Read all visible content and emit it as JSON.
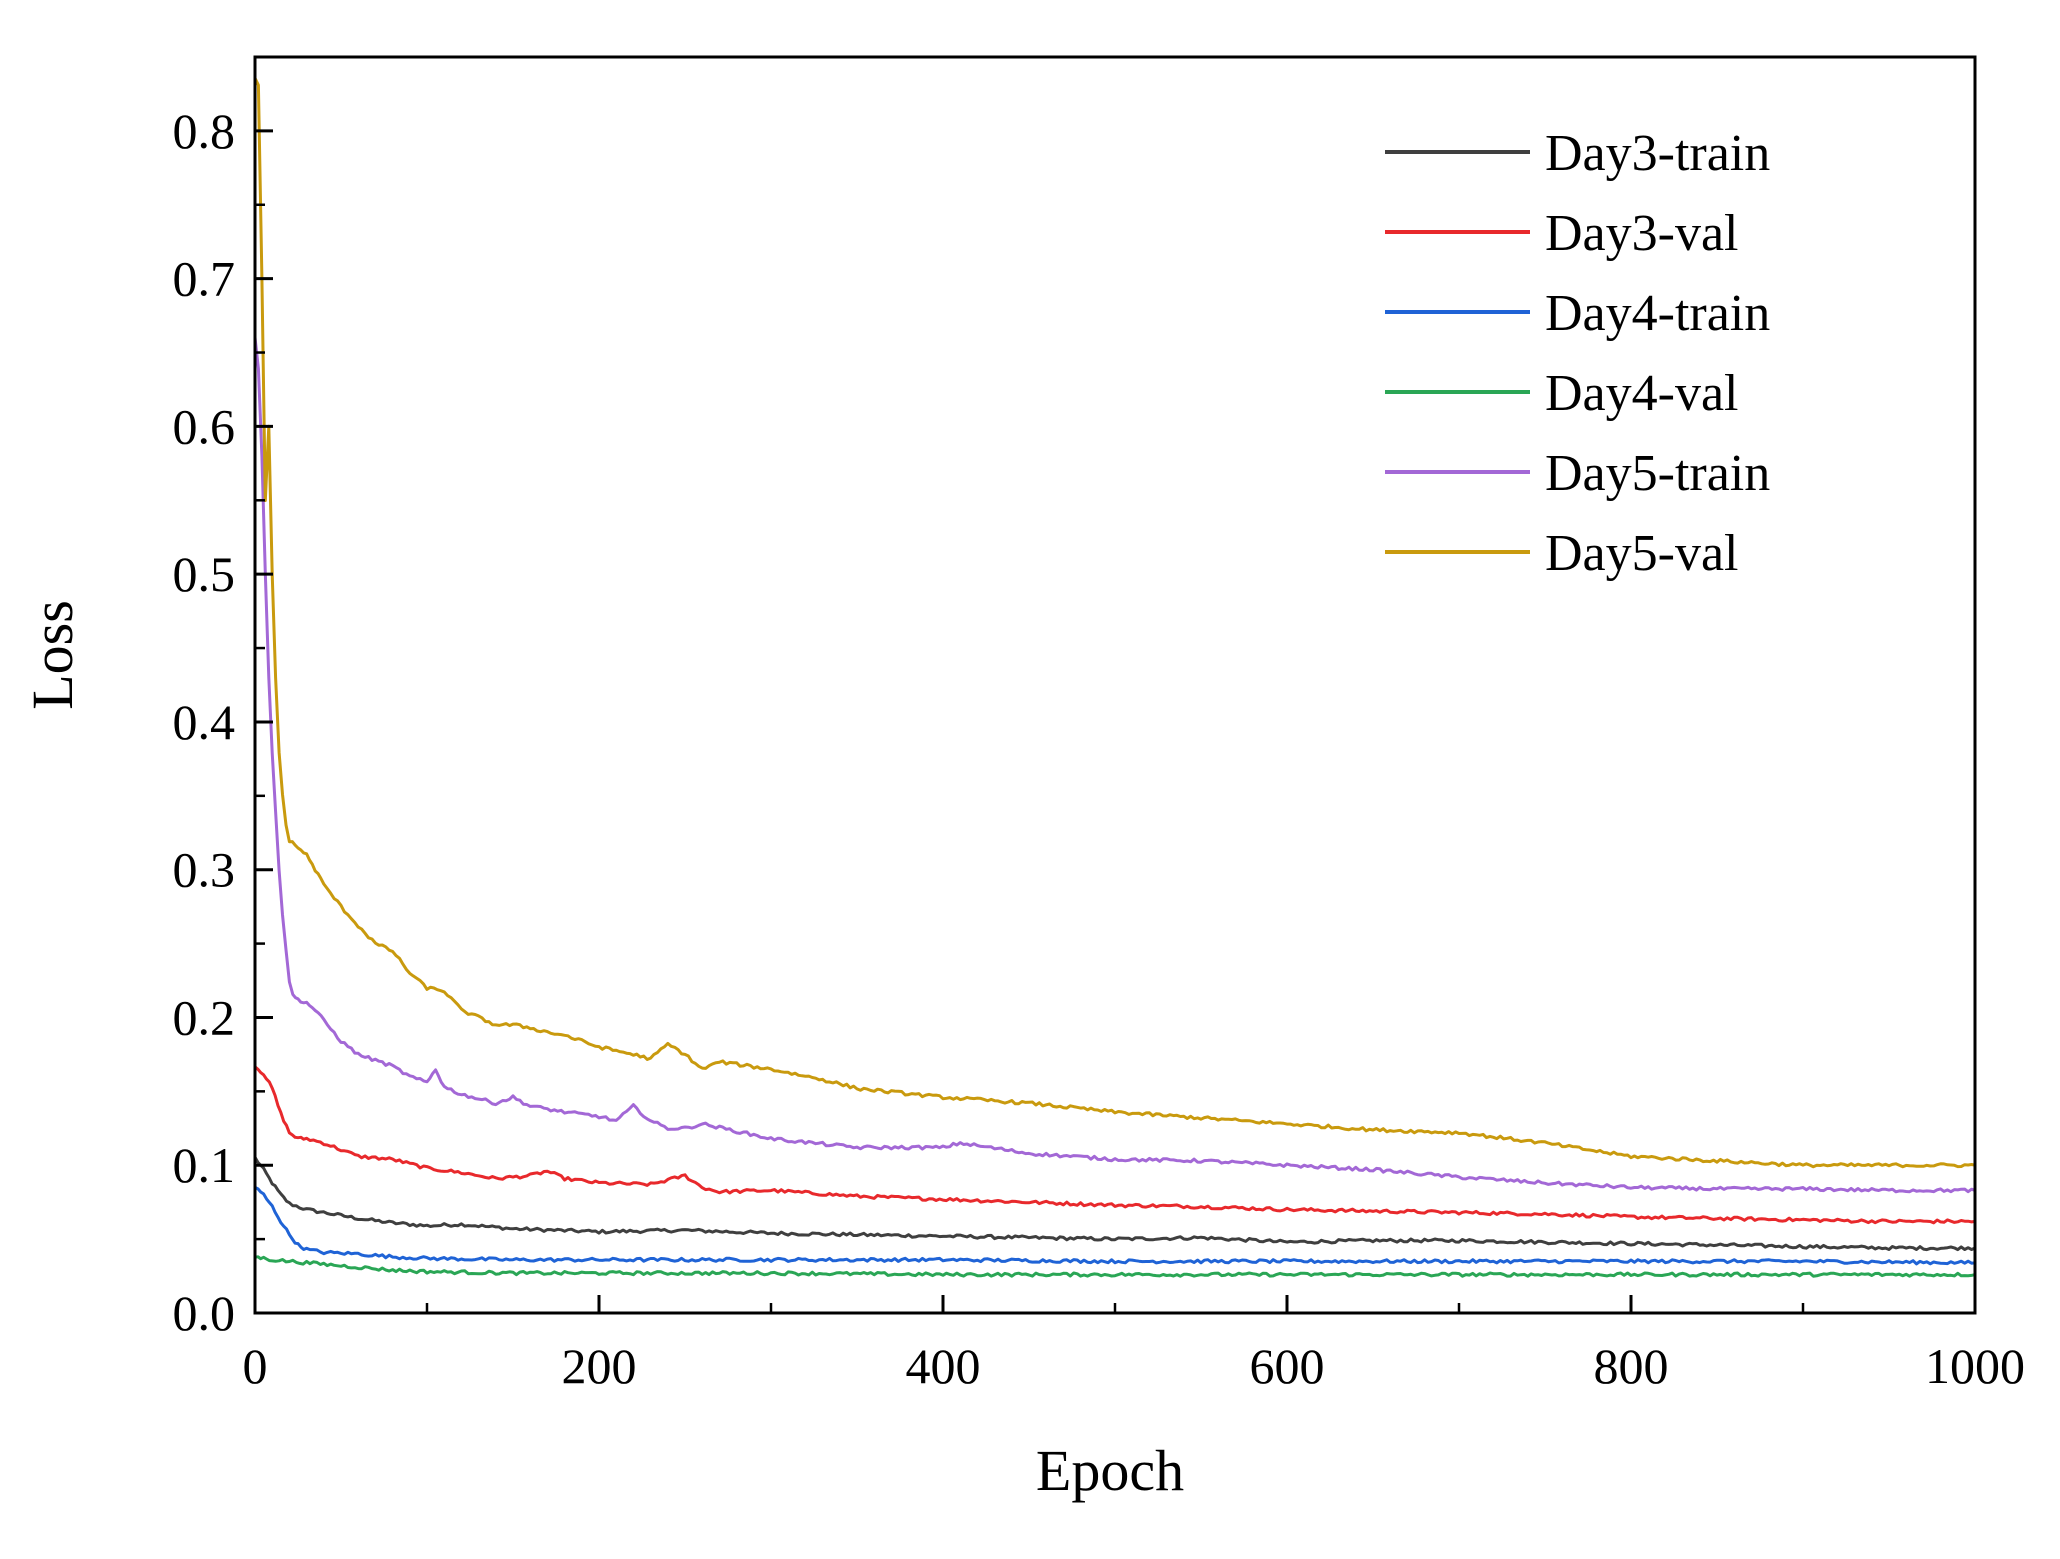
{
  "chart_data": {
    "type": "line",
    "title": "",
    "xlabel": "Epoch",
    "ylabel": "Loss",
    "xlim": [
      0,
      1000
    ],
    "ylim": [
      0,
      0.85
    ],
    "x_ticks": [
      {
        "value": 0,
        "label": "0"
      },
      {
        "value": 200,
        "label": "200"
      },
      {
        "value": 400,
        "label": "400"
      },
      {
        "value": 600,
        "label": "600"
      },
      {
        "value": 800,
        "label": "800"
      },
      {
        "value": 1000,
        "label": "1000"
      }
    ],
    "y_ticks": [
      {
        "value": 0.0,
        "label": "0.0"
      },
      {
        "value": 0.1,
        "label": "0.1"
      },
      {
        "value": 0.2,
        "label": "0.2"
      },
      {
        "value": 0.3,
        "label": "0.3"
      },
      {
        "value": 0.4,
        "label": "0.4"
      },
      {
        "value": 0.5,
        "label": "0.5"
      },
      {
        "value": 0.6,
        "label": "0.6"
      },
      {
        "value": 0.7,
        "label": "0.7"
      },
      {
        "value": 0.8,
        "label": "0.8"
      }
    ],
    "x_minor_step": 100,
    "y_minor_step": 0.05,
    "grid": false,
    "legend_position": "top-right",
    "series": [
      {
        "name": "Day3-train",
        "color": "#3f3f3f",
        "x": [
          0,
          5,
          10,
          15,
          20,
          30,
          40,
          60,
          80,
          100,
          120,
          150,
          200,
          250,
          300,
          350,
          400,
          450,
          500,
          550,
          600,
          650,
          700,
          750,
          800,
          850,
          900,
          950,
          1000
        ],
        "y": [
          0.105,
          0.097,
          0.088,
          0.08,
          0.074,
          0.07,
          0.068,
          0.064,
          0.061,
          0.059,
          0.06,
          0.057,
          0.055,
          0.056,
          0.054,
          0.053,
          0.052,
          0.051,
          0.05,
          0.051,
          0.048,
          0.049,
          0.049,
          0.048,
          0.047,
          0.046,
          0.045,
          0.044,
          0.044
        ]
      },
      {
        "name": "Day3-val",
        "color": "#e8292c",
        "x": [
          0,
          5,
          10,
          15,
          20,
          25,
          30,
          40,
          60,
          80,
          100,
          120,
          140,
          160,
          170,
          180,
          200,
          230,
          250,
          260,
          270,
          300,
          350,
          400,
          450,
          500,
          550,
          600,
          650,
          700,
          750,
          800,
          850,
          900,
          950,
          1000
        ],
        "y": [
          0.167,
          0.162,
          0.152,
          0.135,
          0.122,
          0.118,
          0.118,
          0.115,
          0.106,
          0.104,
          0.098,
          0.095,
          0.091,
          0.093,
          0.096,
          0.091,
          0.088,
          0.087,
          0.093,
          0.085,
          0.082,
          0.083,
          0.079,
          0.077,
          0.075,
          0.073,
          0.072,
          0.07,
          0.069,
          0.068,
          0.067,
          0.065,
          0.064,
          0.063,
          0.062,
          0.062
        ]
      },
      {
        "name": "Day4-train",
        "color": "#1f63d6",
        "x": [
          0,
          5,
          10,
          15,
          20,
          25,
          30,
          40,
          60,
          80,
          100,
          150,
          200,
          300,
          400,
          500,
          600,
          700,
          800,
          900,
          1000
        ],
        "y": [
          0.085,
          0.08,
          0.072,
          0.062,
          0.053,
          0.046,
          0.043,
          0.041,
          0.04,
          0.038,
          0.037,
          0.036,
          0.036,
          0.036,
          0.036,
          0.035,
          0.035,
          0.035,
          0.035,
          0.035,
          0.034
        ]
      },
      {
        "name": "Day4-val",
        "color": "#2aa655",
        "x": [
          0,
          5,
          10,
          20,
          40,
          60,
          80,
          100,
          150,
          200,
          300,
          400,
          500,
          600,
          700,
          800,
          900,
          1000
        ],
        "y": [
          0.038,
          0.037,
          0.036,
          0.035,
          0.033,
          0.031,
          0.029,
          0.028,
          0.027,
          0.027,
          0.027,
          0.026,
          0.026,
          0.026,
          0.026,
          0.026,
          0.026,
          0.026
        ]
      },
      {
        "name": "Day5-train",
        "color": "#a368d6",
        "x": [
          0,
          2,
          4,
          6,
          8,
          10,
          12,
          14,
          16,
          18,
          20,
          22,
          25,
          30,
          35,
          40,
          50,
          60,
          80,
          90,
          100,
          105,
          110,
          120,
          140,
          150,
          160,
          180,
          200,
          210,
          220,
          230,
          240,
          250,
          260,
          300,
          350,
          400,
          410,
          450,
          500,
          550,
          600,
          650,
          700,
          750,
          800,
          850,
          900,
          950,
          1000
        ],
        "y": [
          0.66,
          0.64,
          0.58,
          0.5,
          0.43,
          0.38,
          0.34,
          0.3,
          0.27,
          0.245,
          0.225,
          0.215,
          0.212,
          0.21,
          0.205,
          0.198,
          0.184,
          0.175,
          0.167,
          0.16,
          0.156,
          0.165,
          0.153,
          0.148,
          0.142,
          0.146,
          0.14,
          0.136,
          0.133,
          0.13,
          0.14,
          0.13,
          0.125,
          0.125,
          0.128,
          0.118,
          0.112,
          0.112,
          0.115,
          0.108,
          0.104,
          0.103,
          0.1,
          0.097,
          0.092,
          0.088,
          0.085,
          0.084,
          0.084,
          0.083,
          0.083
        ]
      },
      {
        "name": "Day5-val",
        "color": "#c99a0e",
        "x": [
          0,
          2,
          4,
          6,
          8,
          10,
          12,
          14,
          16,
          18,
          20,
          25,
          30,
          35,
          40,
          50,
          60,
          70,
          80,
          90,
          100,
          110,
          120,
          130,
          140,
          150,
          160,
          170,
          180,
          200,
          220,
          230,
          240,
          250,
          260,
          270,
          300,
          330,
          350,
          400,
          450,
          500,
          550,
          600,
          650,
          700,
          750,
          800,
          850,
          900,
          950,
          980,
          1000
        ],
        "y": [
          0.835,
          0.83,
          0.7,
          0.55,
          0.6,
          0.5,
          0.43,
          0.38,
          0.35,
          0.33,
          0.32,
          0.315,
          0.31,
          0.3,
          0.29,
          0.275,
          0.262,
          0.25,
          0.245,
          0.23,
          0.22,
          0.218,
          0.205,
          0.2,
          0.195,
          0.195,
          0.193,
          0.19,
          0.188,
          0.18,
          0.175,
          0.172,
          0.182,
          0.175,
          0.165,
          0.17,
          0.165,
          0.158,
          0.152,
          0.146,
          0.142,
          0.136,
          0.132,
          0.128,
          0.124,
          0.122,
          0.115,
          0.106,
          0.103,
          0.1,
          0.1,
          0.1,
          0.1
        ]
      }
    ]
  }
}
